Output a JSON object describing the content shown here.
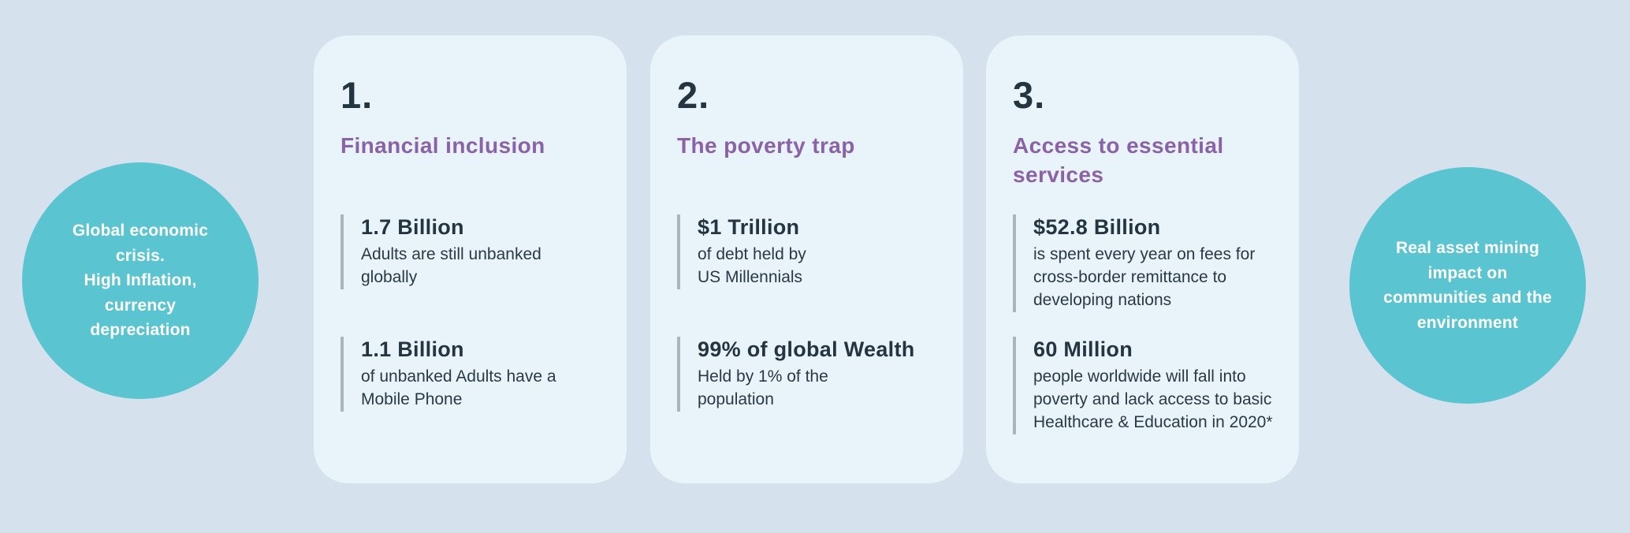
{
  "colors": {
    "background": "#d5e2ee",
    "card_bg": "#e9f3fa",
    "circle_bg": "#5bc4d1",
    "accent_purple": "#8a62a8",
    "text_dark": "#243440",
    "stat_bar": "#aab4bc"
  },
  "circles": {
    "left": {
      "text": "Global economic\ncrisis.\nHigh Inflation,\ncurrency\ndepreciation"
    },
    "right": {
      "text": "Real asset  mining\nimpact on\ncommunities and the\nenvironment"
    }
  },
  "cards": [
    {
      "number": "1.",
      "title": "Financial inclusion",
      "stats": [
        {
          "value": "1.7 Billion",
          "description": "Adults are still unbanked\nglobally"
        },
        {
          "value": "1.1 Billion",
          "description": "of unbanked Adults have a\nMobile Phone"
        }
      ]
    },
    {
      "number": "2.",
      "title": "The poverty trap",
      "stats": [
        {
          "value": "$1 Trillion",
          "description": "of debt held by\nUS Millennials"
        },
        {
          "value": "99% of global Wealth",
          "description": "Held by 1% of the\npopulation"
        }
      ]
    },
    {
      "number": "3.",
      "title": "Access to essential\nservices",
      "stats": [
        {
          "value": "$52.8 Billion",
          "description": "is spent every year on fees for\ncross-border remittance to\ndeveloping nations"
        },
        {
          "value": "60 Million",
          "description": "people worldwide will fall into\npoverty and lack access to basic\nHealthcare & Education in 2020*"
        }
      ]
    }
  ]
}
